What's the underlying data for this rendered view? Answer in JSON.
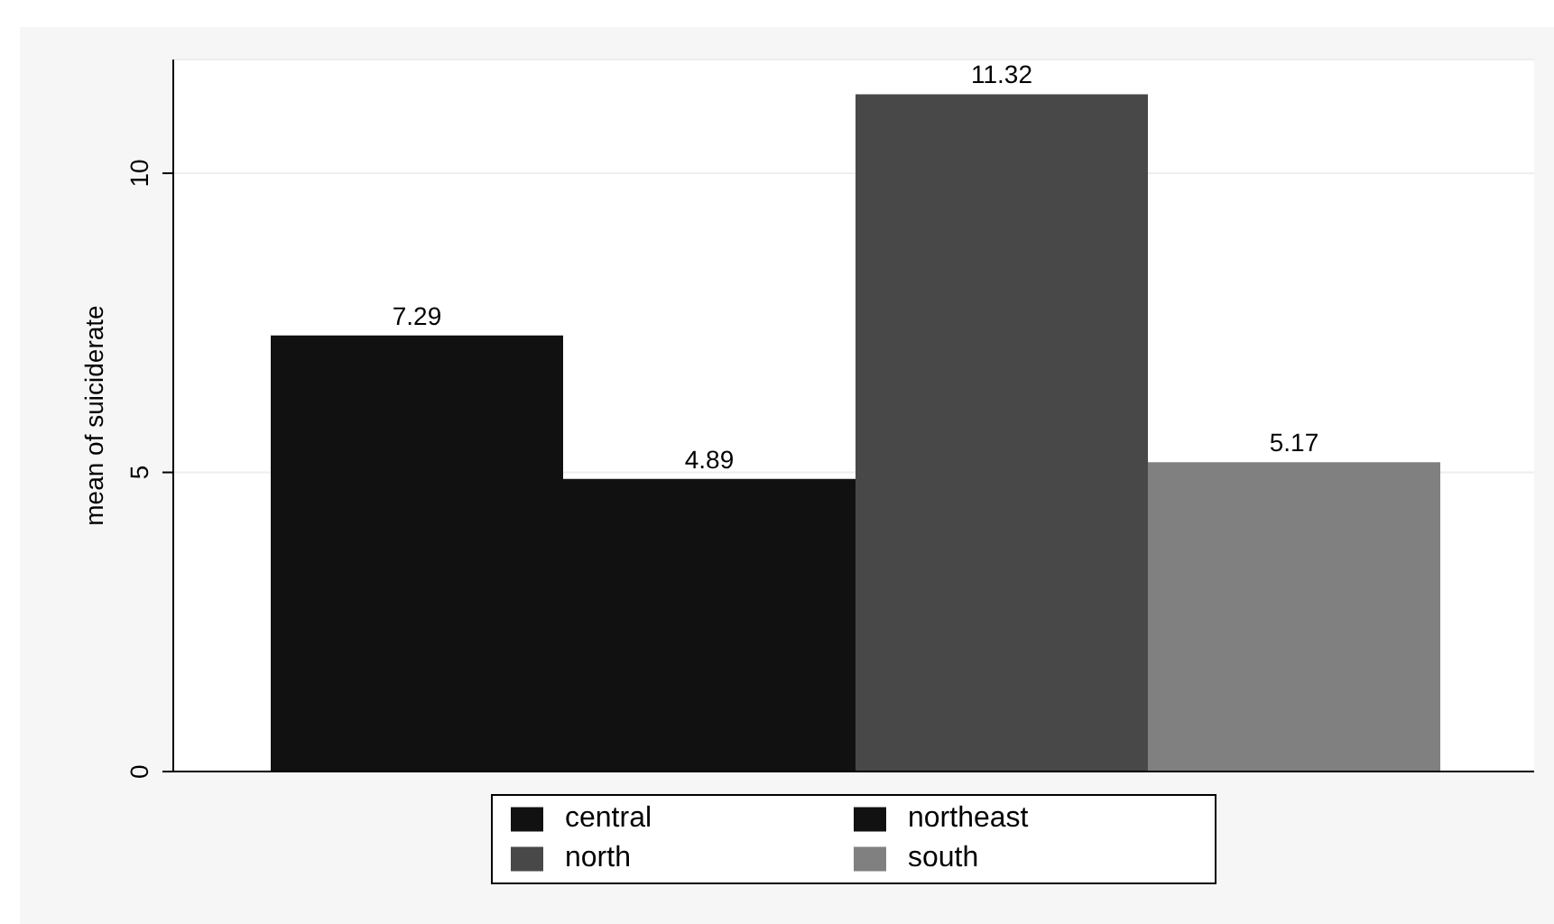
{
  "chart_data": {
    "type": "bar",
    "ylabel": "mean of suiciderate",
    "categories": [
      null
    ],
    "series": [
      {
        "name": "central",
        "color": "#111111",
        "values": [
          7.29
        ]
      },
      {
        "name": "northeast",
        "color": "#111111",
        "values": [
          4.89
        ]
      },
      {
        "name": "north",
        "color": "#484848",
        "values": [
          11.32
        ]
      },
      {
        "name": "south",
        "color": "#808080",
        "values": [
          5.17
        ]
      }
    ],
    "ylim": [
      0,
      11.9
    ],
    "yticks": [
      0,
      5,
      10
    ],
    "grid": "y",
    "legend": "bottom",
    "data_labels": true
  }
}
